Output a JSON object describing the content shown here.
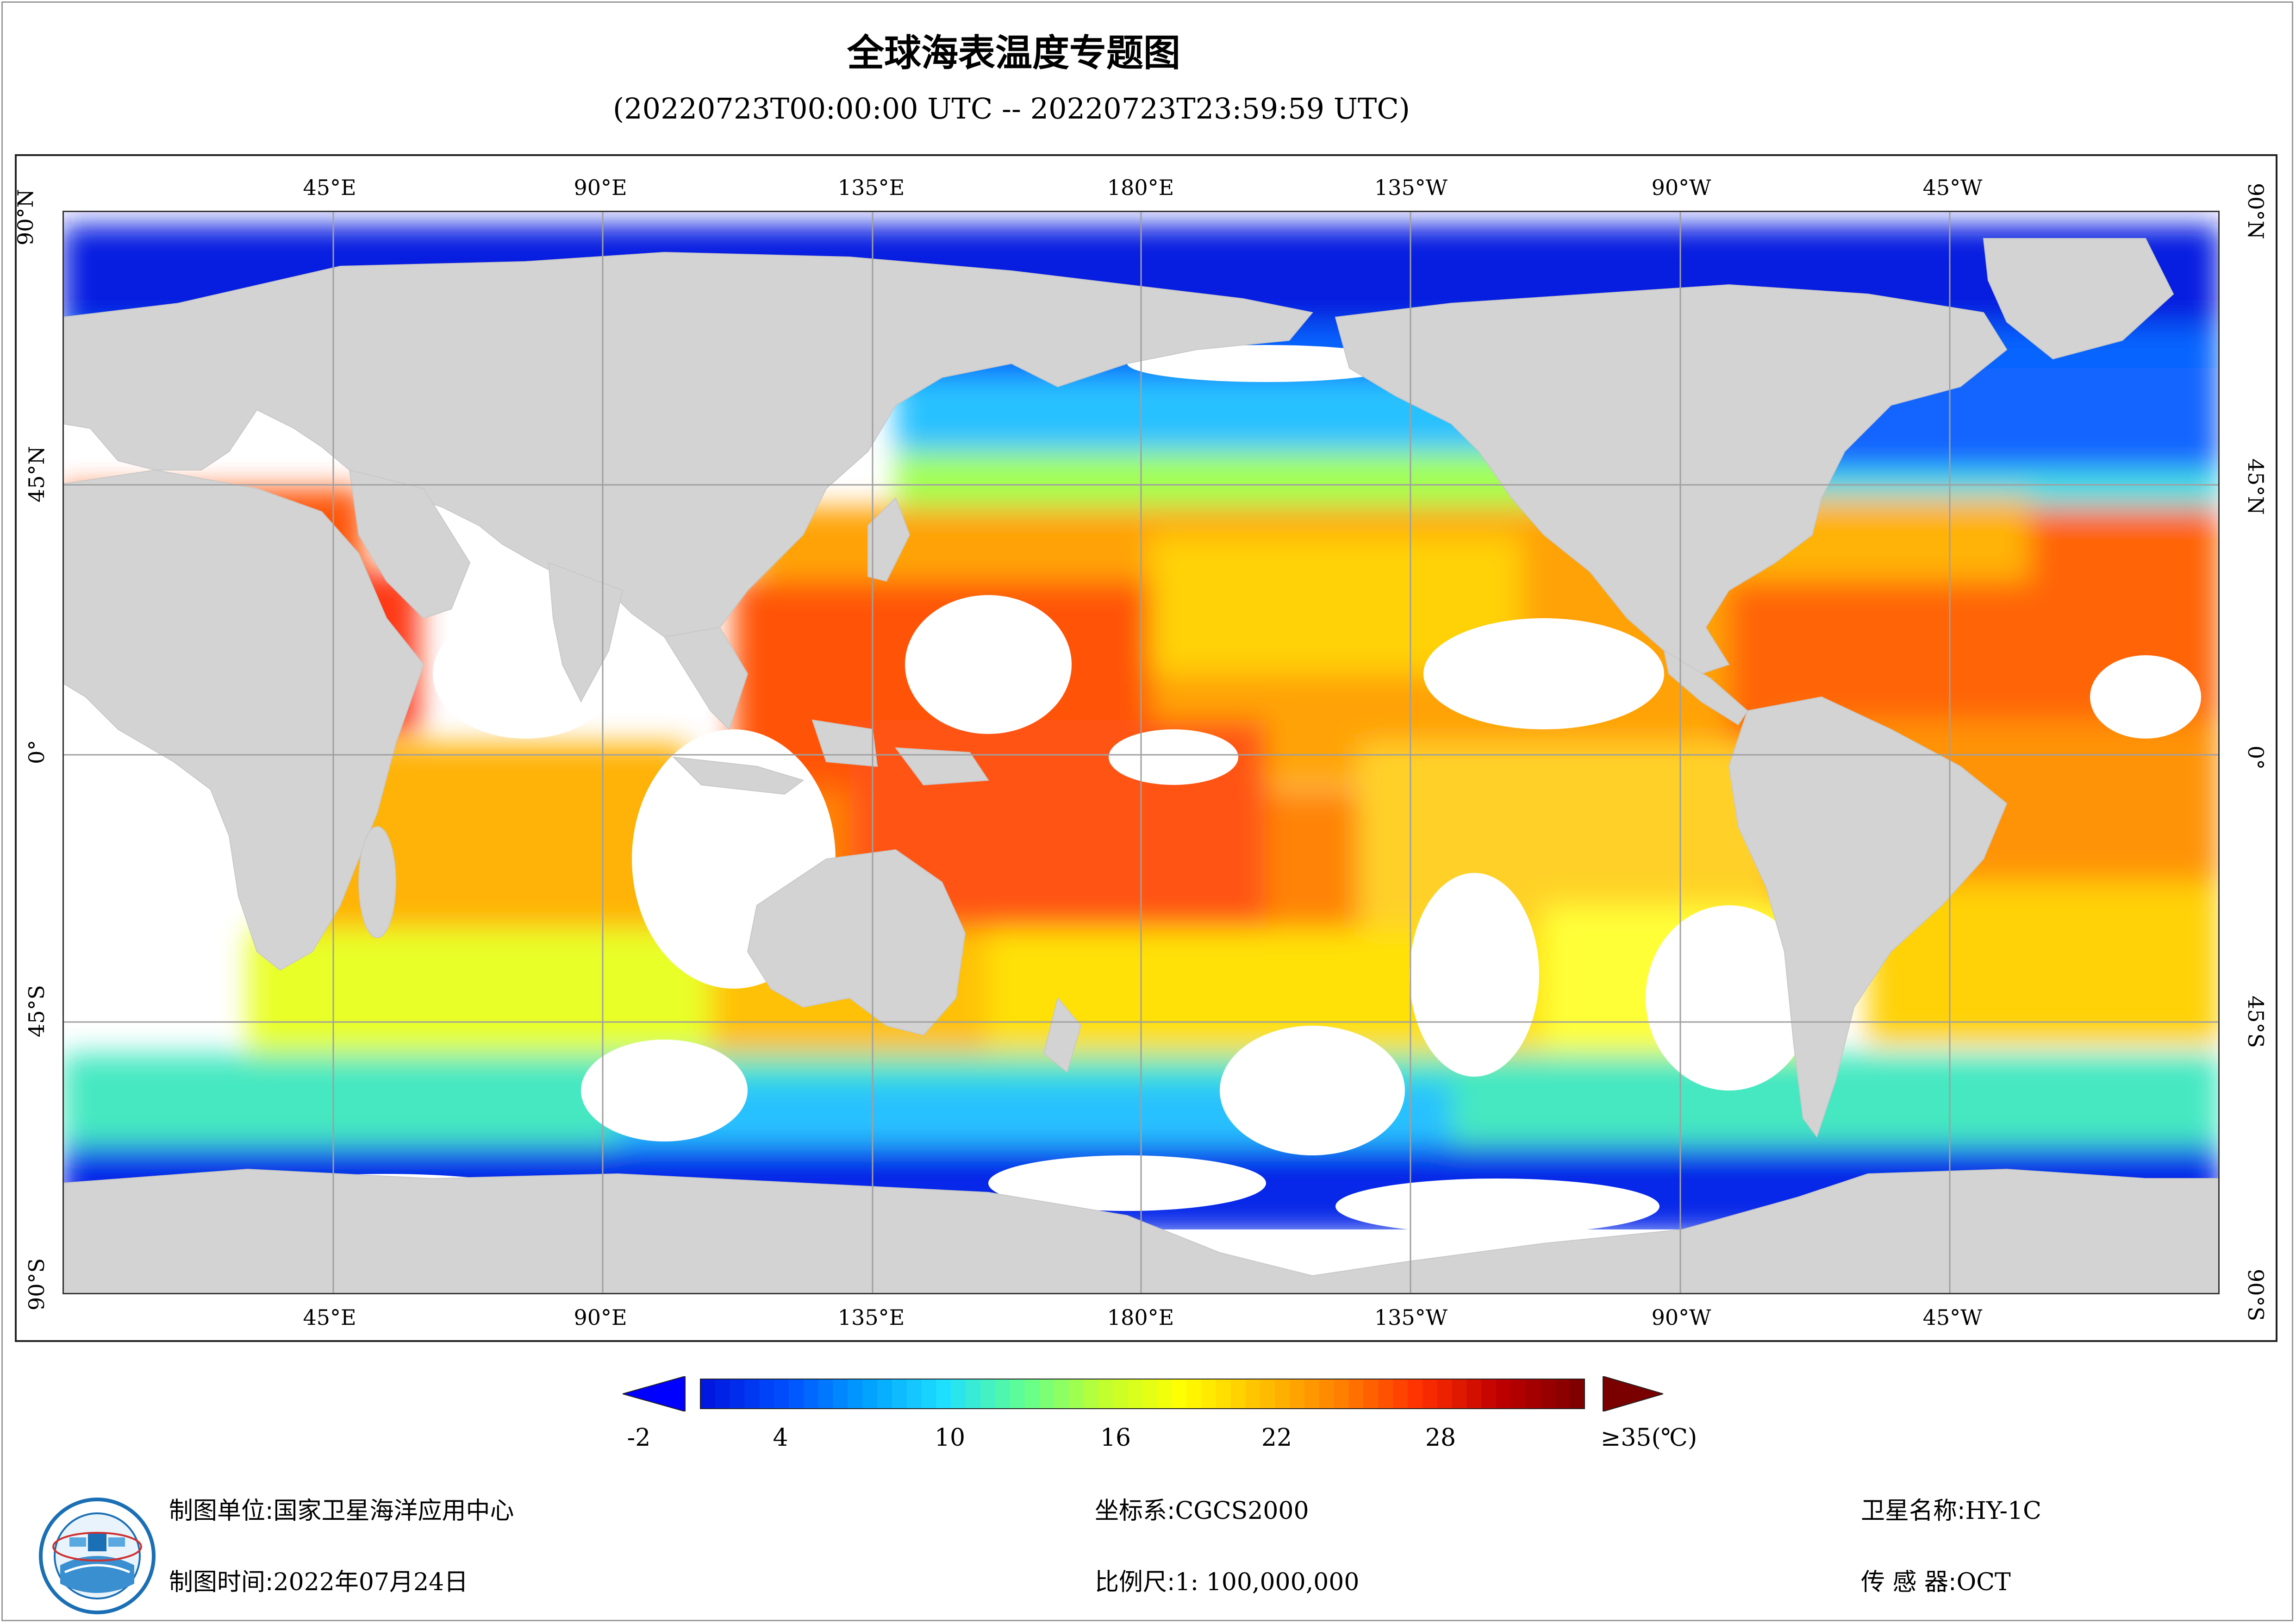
{
  "title": "全球海表温度专题图",
  "subtitle": "(20220723T00:00:00 UTC -- 20220723T23:59:59 UTC)",
  "longitude_labels": [
    "45°E",
    "90°E",
    "135°E",
    "180°E",
    "135°W",
    "90°W",
    "45°W"
  ],
  "latitude_labels": [
    "90°N",
    "45°N",
    "0°",
    "45°S",
    "90°S"
  ],
  "colorbar": {
    "ticks": [
      "-2",
      "4",
      "10",
      "16",
      "22",
      "28",
      "≥35(℃)"
    ],
    "colors": [
      "#0018e0",
      "#0050ff",
      "#00a0ff",
      "#20e0ff",
      "#60ff90",
      "#c0ff30",
      "#ffff00",
      "#ffc000",
      "#ff8000",
      "#ff3000",
      "#c00000",
      "#800000"
    ],
    "under_color": "#0000ff",
    "over_color": "#7a0000"
  },
  "footer": {
    "unit_label": "制图单位:",
    "unit_value": "国家卫星海洋应用中心",
    "time_label": "制图时间:",
    "time_value": "2022年07月24日",
    "crs_label": "坐标系:",
    "crs_value": "CGCS2000",
    "scale_label": "比例尺:",
    "scale_value": "1: 100,000,000",
    "satellite_label": "卫星名称:",
    "satellite_value": "HY-1C",
    "sensor_label": "传 感 器:",
    "sensor_value": "OCT"
  },
  "map_colors": {
    "land": "#d3d3d3",
    "cloud_nodata": "#ffffff",
    "grid": "#a0a0a0"
  },
  "logo": {
    "name": "national-satellite-ocean-application-service-logo"
  }
}
